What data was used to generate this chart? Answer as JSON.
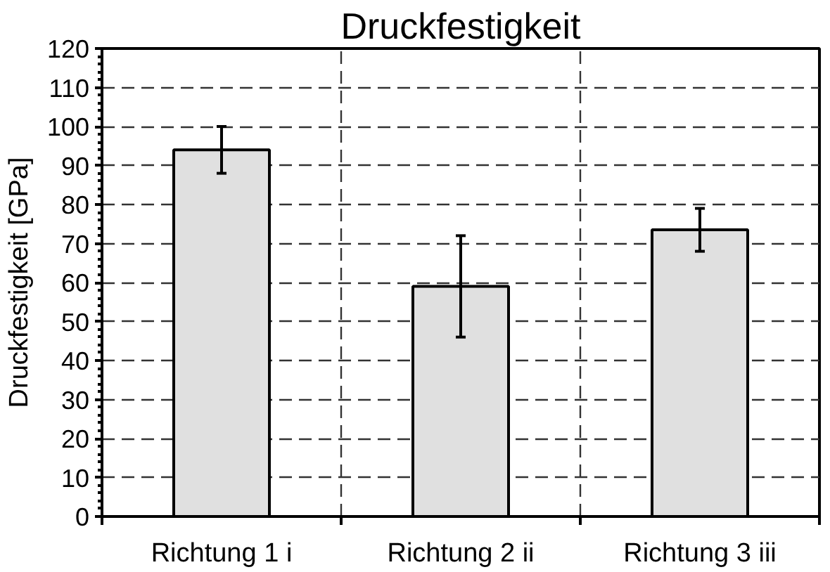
{
  "chart_data": {
    "type": "bar",
    "title": "Druckfestigkeit",
    "ylabel": "Druckfestigkeit [GPa]",
    "categories": [
      "Richtung 1 i",
      "Richtung 2 ii",
      "Richtung 3 iii"
    ],
    "values": [
      94,
      59,
      73.5
    ],
    "errors": [
      6,
      13,
      5.5
    ],
    "color": "#e0e0e0",
    "ylim": [
      0,
      120
    ],
    "yticks": [
      0,
      10,
      20,
      30,
      40,
      50,
      60,
      70,
      80,
      90,
      100,
      110,
      120
    ],
    "grid": true
  }
}
